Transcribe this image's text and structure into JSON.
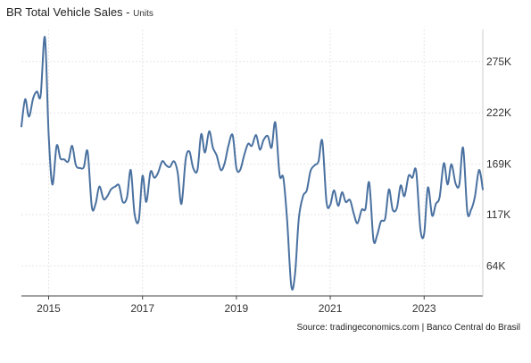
{
  "chart_data": {
    "type": "line",
    "title": "BR Total Vehicle Sales",
    "subtitle": "Units",
    "source": "Source: tradingeconomics.com | Banco Central do Brasil",
    "xlabel": "",
    "ylabel": "",
    "x_range": [
      2014.42,
      2024.25
    ],
    "ylim": [
      33000,
      308000
    ],
    "y_ticks": [
      64000,
      117000,
      169000,
      222000,
      275000
    ],
    "y_tick_labels": [
      "64K",
      "117K",
      "169K",
      "222K",
      "275K"
    ],
    "x_ticks": [
      2015,
      2017,
      2019,
      2021,
      2023
    ],
    "x_tick_labels": [
      "2015",
      "2017",
      "2019",
      "2021",
      "2023"
    ],
    "grid": true,
    "line_color": "#4a71a0",
    "series": [
      {
        "x": [
          2014.42,
          2014.5,
          2014.58,
          2014.67,
          2014.75,
          2014.83,
          2014.92,
          2015.0,
          2015.08,
          2015.17,
          2015.25,
          2015.33,
          2015.42,
          2015.5,
          2015.58,
          2015.67,
          2015.75,
          2015.83,
          2015.92,
          2016.0,
          2016.08,
          2016.17,
          2016.25,
          2016.33,
          2016.42,
          2016.5,
          2016.58,
          2016.67,
          2016.75,
          2016.83,
          2016.92,
          2017.0,
          2017.08,
          2017.17,
          2017.25,
          2017.33,
          2017.42,
          2017.5,
          2017.58,
          2017.67,
          2017.75,
          2017.83,
          2017.92,
          2018.0,
          2018.08,
          2018.17,
          2018.25,
          2018.33,
          2018.42,
          2018.5,
          2018.58,
          2018.67,
          2018.75,
          2018.83,
          2018.92,
          2019.0,
          2019.08,
          2019.17,
          2019.25,
          2019.33,
          2019.42,
          2019.5,
          2019.58,
          2019.67,
          2019.75,
          2019.83,
          2019.92,
          2020.0,
          2020.08,
          2020.17,
          2020.25,
          2020.33,
          2020.42,
          2020.5,
          2020.58,
          2020.67,
          2020.75,
          2020.83,
          2020.92,
          2021.0,
          2021.08,
          2021.17,
          2021.25,
          2021.33,
          2021.42,
          2021.5,
          2021.58,
          2021.67,
          2021.75,
          2021.83,
          2021.92,
          2022.0,
          2022.08,
          2022.17,
          2022.25,
          2022.33,
          2022.42,
          2022.5,
          2022.58,
          2022.67,
          2022.75,
          2022.83,
          2022.92,
          2023.0,
          2023.08,
          2023.17,
          2023.25,
          2023.33,
          2023.42,
          2023.5,
          2023.58,
          2023.67,
          2023.75,
          2023.83,
          2023.92,
          2024.0,
          2024.08,
          2024.17,
          2024.25
        ],
        "values": [
          208000,
          236000,
          218000,
          237000,
          244000,
          240000,
          300000,
          200000,
          148000,
          188000,
          175000,
          174000,
          172000,
          188000,
          168000,
          165000,
          166000,
          182000,
          125000,
          128000,
          146000,
          133000,
          136000,
          143000,
          146000,
          147000,
          130000,
          135000,
          163000,
          118000,
          111000,
          157000,
          130000,
          161000,
          155000,
          160000,
          172000,
          168000,
          166000,
          172000,
          160000,
          128000,
          174000,
          182000,
          165000,
          163000,
          200000,
          181000,
          203000,
          186000,
          178000,
          163000,
          170000,
          188000,
          199000,
          165000,
          163000,
          179000,
          190000,
          188000,
          199000,
          184000,
          194000,
          198000,
          186000,
          212000,
          158000,
          155000,
          112000,
          43000,
          56000,
          113000,
          136000,
          142000,
          162000,
          168000,
          172000,
          193000,
          130000,
          127000,
          142000,
          126000,
          140000,
          130000,
          132000,
          118000,
          108000,
          122000,
          123000,
          150000,
          91000,
          96000,
          110000,
          113000,
          143000,
          122000,
          124000,
          147000,
          136000,
          157000,
          155000,
          162000,
          102000,
          97000,
          145000,
          116000,
          128000,
          135000,
          170000,
          148000,
          169000,
          149000,
          148000,
          186000,
          120000,
          122000,
          135000,
          163000,
          143000
        ]
      }
    ]
  }
}
